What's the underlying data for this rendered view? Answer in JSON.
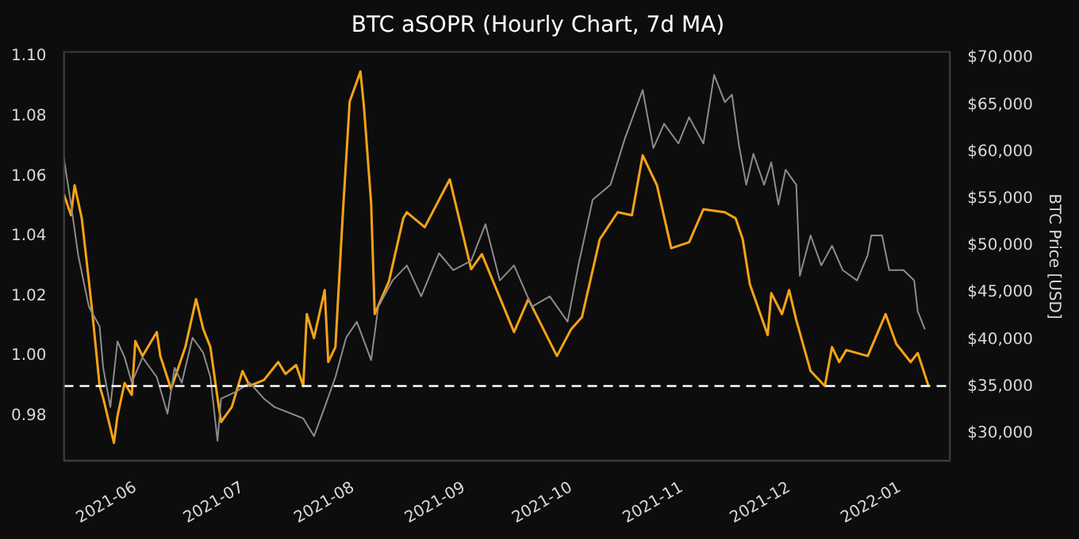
{
  "chart_data": {
    "type": "line",
    "title": "BTC aSOPR (Hourly Chart, 7d MA)",
    "y2label": "BTC Price [USD]",
    "xlim": [
      "2021-05-12",
      "2022-01-15"
    ],
    "xticks": [
      "2021-06",
      "2021-07",
      "2021-08",
      "2021-09",
      "2021-10",
      "2021-11",
      "2021-12",
      "2022-01"
    ],
    "ylim": [
      0.965,
      1.1015
    ],
    "yticks": [
      0.98,
      {
        "value": 1.0,
        "label": "1.00"
      },
      1.02,
      1.04,
      1.06,
      1.08,
      {
        "value": 1.1,
        "label": "1.10"
      }
    ],
    "y2lim": [
      27070,
      70650
    ],
    "y2ticks": [
      {
        "value": 30000,
        "label": "$30,000"
      },
      {
        "value": 35000,
        "label": "$35,000"
      },
      {
        "value": 40000,
        "label": "$40,000"
      },
      {
        "value": 45000,
        "label": "$45,000"
      },
      {
        "value": 50000,
        "label": "$50,000"
      },
      {
        "value": 55000,
        "label": "$55,000"
      },
      {
        "value": 60000,
        "label": "$60,000"
      },
      {
        "value": 65000,
        "label": "$65,000"
      },
      {
        "value": 70000,
        "label": "$70,000"
      }
    ],
    "grid": false,
    "legend": false,
    "marker": "none",
    "line_style": "solid",
    "ref_lines": [
      {
        "axis": "y",
        "value": 0.99,
        "color": "#ffffff",
        "line_style": "dashed"
      }
    ],
    "series": [
      {
        "color": "#8c8c8c",
        "axis": "y2",
        "x": [
          "2021-05-12",
          "2021-05-14",
          "2021-05-16",
          "2021-05-19",
          "2021-05-22",
          "2021-05-23",
          "2021-05-25",
          "2021-05-27",
          "2021-05-29",
          "2021-05-31",
          "2021-06-03",
          "2021-06-07",
          "2021-06-10",
          "2021-06-12",
          "2021-06-14",
          "2021-06-17",
          "2021-06-20",
          "2021-06-22",
          "2021-06-24",
          "2021-06-25",
          "2021-06-29",
          "2021-07-03",
          "2021-07-07",
          "2021-07-10",
          "2021-07-16",
          "2021-07-18",
          "2021-07-21",
          "2021-07-24",
          "2021-07-27",
          "2021-07-30",
          "2021-08-02",
          "2021-08-06",
          "2021-08-08",
          "2021-08-12",
          "2021-08-16",
          "2021-08-20",
          "2021-08-25",
          "2021-08-29",
          "2021-09-03",
          "2021-09-07",
          "2021-09-11",
          "2021-09-15",
          "2021-09-20",
          "2021-09-25",
          "2021-09-30",
          "2021-10-03",
          "2021-10-07",
          "2021-10-12",
          "2021-10-16",
          "2021-10-21",
          "2021-10-24",
          "2021-10-27",
          "2021-10-31",
          "2021-11-03",
          "2021-11-07",
          "2021-11-10",
          "2021-11-13",
          "2021-11-15",
          "2021-11-17",
          "2021-11-19",
          "2021-11-21",
          "2021-11-24",
          "2021-11-26",
          "2021-11-28",
          "2021-11-30",
          "2021-12-03",
          "2021-12-04",
          "2021-12-07",
          "2021-12-10",
          "2021-12-13",
          "2021-12-16",
          "2021-12-20",
          "2021-12-23",
          "2021-12-24",
          "2021-12-27",
          "2021-12-29",
          "2022-01-02",
          "2022-01-05",
          "2022-01-06",
          "2022-01-08"
        ],
        "values": [
          59300,
          54400,
          49000,
          43500,
          41400,
          37000,
          32800,
          39800,
          38100,
          35400,
          38100,
          36000,
          32100,
          37000,
          35400,
          40200,
          38600,
          36000,
          29200,
          33700,
          34400,
          35400,
          33700,
          32800,
          31900,
          31600,
          29700,
          32800,
          36000,
          40200,
          41900,
          37800,
          43500,
          46300,
          47900,
          44600,
          49200,
          47400,
          48400,
          52300,
          46300,
          47900,
          43500,
          44600,
          41900,
          47900,
          54900,
          56500,
          61400,
          66600,
          60400,
          63000,
          60900,
          63700,
          60900,
          68200,
          65300,
          66100,
          60600,
          56500,
          59800,
          56500,
          58900,
          54400,
          58100,
          56500,
          46800,
          51100,
          47900,
          50000,
          47400,
          46300,
          49000,
          51100,
          51100,
          47400,
          47400,
          46300,
          43000,
          41100
        ]
      },
      {
        "color": "#f7a316",
        "axis": "y",
        "x": [
          "2021-05-12",
          "2021-05-14",
          "2021-05-15",
          "2021-05-17",
          "2021-05-19",
          "2021-05-20",
          "2021-05-22",
          "2021-05-23",
          "2021-05-26",
          "2021-05-27",
          "2021-05-29",
          "2021-05-31",
          "2021-06-01",
          "2021-06-03",
          "2021-06-06",
          "2021-06-07",
          "2021-06-08",
          "2021-06-11",
          "2021-06-13",
          "2021-06-15",
          "2021-06-18",
          "2021-06-20",
          "2021-06-22",
          "2021-06-24",
          "2021-06-25",
          "2021-06-28",
          "2021-07-01",
          "2021-07-03",
          "2021-07-05",
          "2021-07-07",
          "2021-07-11",
          "2021-07-13",
          "2021-07-16",
          "2021-07-18",
          "2021-07-19",
          "2021-07-21",
          "2021-07-24",
          "2021-07-25",
          "2021-07-27",
          "2021-07-29",
          "2021-07-31",
          "2021-08-03",
          "2021-08-04",
          "2021-08-06",
          "2021-08-07",
          "2021-08-11",
          "2021-08-15",
          "2021-08-16",
          "2021-08-21",
          "2021-08-28",
          "2021-09-03",
          "2021-09-06",
          "2021-09-15",
          "2021-09-19",
          "2021-09-27",
          "2021-10-01",
          "2021-10-04",
          "2021-10-09",
          "2021-10-14",
          "2021-10-18",
          "2021-10-21",
          "2021-10-25",
          "2021-10-29",
          "2021-11-03",
          "2021-11-07",
          "2021-11-13",
          "2021-11-16",
          "2021-11-18",
          "2021-11-20",
          "2021-11-25",
          "2021-11-26",
          "2021-11-29",
          "2021-12-01",
          "2021-12-03",
          "2021-12-07",
          "2021-12-11",
          "2021-12-13",
          "2021-12-15",
          "2021-12-17",
          "2021-12-23",
          "2021-12-28",
          "2021-12-31",
          "2022-01-04",
          "2022-01-06",
          "2022-01-09"
        ],
        "values": [
          1.054,
          1.047,
          1.057,
          1.046,
          1.025,
          1.014,
          0.99,
          0.986,
          0.971,
          0.98,
          0.991,
          0.987,
          1.005,
          1.0,
          1.006,
          1.008,
          1.0,
          0.989,
          0.996,
          1.003,
          1.019,
          1.009,
          1.003,
          0.986,
          0.978,
          0.983,
          0.995,
          0.99,
          0.991,
          0.992,
          0.998,
          0.994,
          0.997,
          0.99,
          1.014,
          1.006,
          1.022,
          0.998,
          1.003,
          1.046,
          1.085,
          1.095,
          1.083,
          1.051,
          1.014,
          1.025,
          1.046,
          1.048,
          1.043,
          1.059,
          1.029,
          1.034,
          1.008,
          1.019,
          1.0,
          1.009,
          1.013,
          1.039,
          1.048,
          1.047,
          1.067,
          1.057,
          1.036,
          1.038,
          1.049,
          1.048,
          1.046,
          1.039,
          1.024,
          1.007,
          1.021,
          1.014,
          1.022,
          1.012,
          0.995,
          0.99,
          1.003,
          0.998,
          1.002,
          1.0,
          1.014,
          1.004,
          0.998,
          1.001,
          0.99
        ]
      }
    ]
  }
}
